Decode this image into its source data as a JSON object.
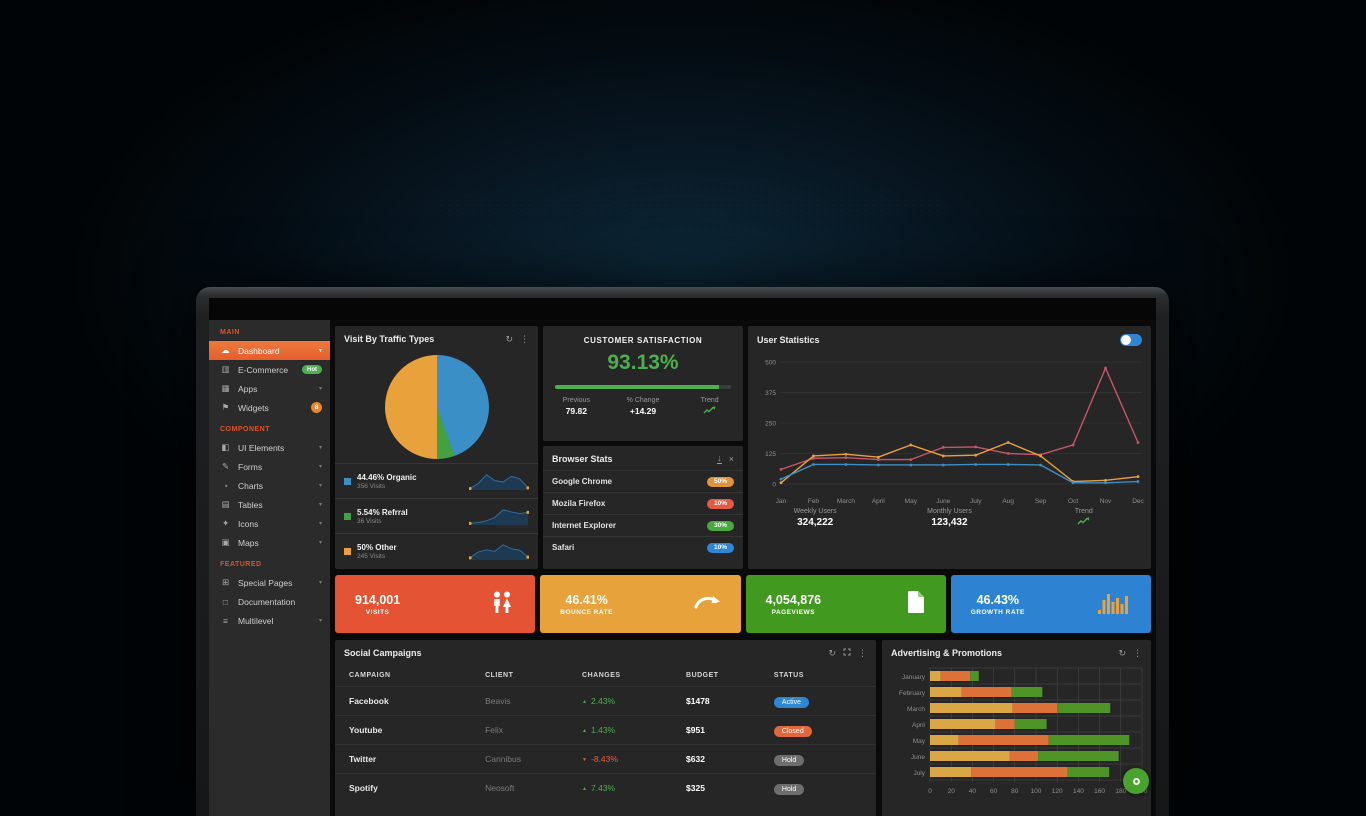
{
  "sidebar": {
    "sections": [
      {
        "label": "MAIN",
        "items": [
          {
            "label": "Dashboard",
            "icon": "dashboard-icon",
            "glyph": "☁",
            "active": true,
            "chevron": true
          },
          {
            "label": "E-Commerce",
            "icon": "ecommerce-icon",
            "glyph": "▥",
            "badge": {
              "text": "Hot",
              "type": "pill",
              "color": "#4caf50"
            }
          },
          {
            "label": "Apps",
            "icon": "apps-icon",
            "glyph": "▦",
            "chevron": true
          },
          {
            "label": "Widgets",
            "icon": "widgets-icon",
            "glyph": "⚑",
            "badge": {
              "text": "8",
              "type": "round",
              "color": "#e8872c"
            }
          }
        ]
      },
      {
        "label": "COMPONENT",
        "items": [
          {
            "label": "UI Elements",
            "icon": "ui-elements-icon",
            "glyph": "◧",
            "chevron": true
          },
          {
            "label": "Forms",
            "icon": "forms-icon",
            "glyph": "✎",
            "chevron": true
          },
          {
            "label": "Charts",
            "icon": "charts-icon",
            "glyph": "◔",
            "chevron": true
          },
          {
            "label": "Tables",
            "icon": "tables-icon",
            "glyph": "▤",
            "chevron": true
          },
          {
            "label": "Icons",
            "icon": "icons-icon",
            "glyph": "✦",
            "chevron": true
          },
          {
            "label": "Maps",
            "icon": "maps-icon",
            "glyph": "▣",
            "chevron": true
          }
        ]
      },
      {
        "label": "FEATURED",
        "items": [
          {
            "label": "Special Pages",
            "icon": "special-pages-icon",
            "glyph": "⊞",
            "chevron": true
          },
          {
            "label": "Documentation",
            "icon": "documentation-icon",
            "glyph": "□"
          },
          {
            "label": "Multilevel",
            "icon": "multilevel-icon",
            "glyph": "≡",
            "chevron": true
          }
        ]
      }
    ]
  },
  "traffic": {
    "title": "Visit By Traffic Types",
    "chart_data": {
      "type": "pie",
      "slices": [
        {
          "label": "Organic",
          "display": "44.46% Organic",
          "percent": 44.46,
          "visits": "356 Visits",
          "color": "#3a8fc7",
          "spark": [
            4,
            18,
            42,
            26,
            22,
            38,
            31,
            6
          ]
        },
        {
          "label": "Refrral",
          "display": "5.54% Refrral",
          "percent": 5.54,
          "visits": "36 Visits",
          "color": "#44a13f",
          "spark": [
            4,
            6,
            10,
            18,
            36,
            31,
            27,
            30
          ]
        },
        {
          "label": "Other",
          "display": "50% Other",
          "percent": 50.0,
          "visits": "245 Visits",
          "color": "#e9a13c",
          "spark": [
            6,
            22,
            28,
            24,
            42,
            31,
            27,
            8
          ]
        }
      ]
    }
  },
  "satisfaction": {
    "title": "CUSTOMER SATISFACTION",
    "value": "93.13%",
    "progress_percent": 93.13,
    "previous_label": "Previous",
    "previous": "79.82",
    "change_label": "% Change",
    "change": "+14.29",
    "trend_label": "Trend"
  },
  "browsers": {
    "title": "Browser Stats",
    "rows": [
      {
        "name": "Google Chrome",
        "value": "50%",
        "color": "#e2943b"
      },
      {
        "name": "Mozila Firefox",
        "value": "10%",
        "color": "#e25b44"
      },
      {
        "name": "Internet Explorer",
        "value": "30%",
        "color": "#49a83e"
      },
      {
        "name": "Safari",
        "value": "10%",
        "color": "#2f86d2"
      }
    ]
  },
  "user_stats": {
    "title": "User Statistics",
    "weekly_label": "Weekly Users",
    "weekly": "324,222",
    "monthly_label": "Monthly Users",
    "monthly": "123,432",
    "trend_label": "Trend",
    "chart_data": {
      "type": "line",
      "x": [
        "Jan",
        "Feb",
        "March",
        "April",
        "May",
        "June",
        "July",
        "Aug",
        "Sep",
        "Oct",
        "Nov",
        "Dec"
      ],
      "yticks": [
        0,
        125,
        250,
        375,
        500
      ],
      "ylim": [
        0,
        500
      ],
      "series": [
        {
          "name": "series-red",
          "color": "#c6566b",
          "values": [
            60,
            105,
            108,
            100,
            100,
            150,
            152,
            125,
            120,
            160,
            475,
            170
          ]
        },
        {
          "name": "series-orange",
          "color": "#e9a13c",
          "values": [
            5,
            115,
            122,
            110,
            160,
            115,
            118,
            170,
            115,
            10,
            15,
            30
          ]
        },
        {
          "name": "series-blue",
          "color": "#3a8fc7",
          "values": [
            20,
            80,
            80,
            78,
            78,
            78,
            80,
            80,
            78,
            5,
            5,
            10
          ]
        }
      ]
    }
  },
  "tiles": [
    {
      "value": "914,001",
      "label": "VISITS",
      "color": "#e45334",
      "icon": "people-icon"
    },
    {
      "value": "46.41%",
      "label": "BOUNCE RATE",
      "color": "#e8a23b",
      "icon": "bounce-arrow-icon"
    },
    {
      "value": "4,054,876",
      "label": "PAGEVIEWS",
      "color": "#41991f",
      "icon": "file-icon"
    },
    {
      "value": "46.43%",
      "label": "GROWTH RATE",
      "color": "#2d83d2",
      "icon": "bar-chart-icon"
    }
  ],
  "campaigns": {
    "title": "Social Campaigns",
    "columns": [
      "CAMPAIGN",
      "CLIENT",
      "CHANGES",
      "BUDGET",
      "STATUS"
    ],
    "rows": [
      {
        "campaign": "Facebook",
        "client": "Beavis",
        "change": "2.43%",
        "direction": "up",
        "budget": "$1478",
        "status": "Active",
        "status_color": "#2f86d2"
      },
      {
        "campaign": "Youtube",
        "client": "Felix",
        "change": "1.43%",
        "direction": "up",
        "budget": "$951",
        "status": "Closed",
        "status_color": "#e0683c"
      },
      {
        "campaign": "Twitter",
        "client": "Cannibus",
        "change": "-8.43%",
        "direction": "down",
        "budget": "$632",
        "status": "Hold",
        "status_color": "#6e6e6e"
      },
      {
        "campaign": "Spotify",
        "client": "Neosoft",
        "change": "7.43%",
        "direction": "up",
        "budget": "$325",
        "status": "Hold",
        "status_color": "#6e6e6e"
      }
    ]
  },
  "advertising": {
    "title": "Advertising & Promotions",
    "chart_data": {
      "type": "bar",
      "orientation": "horizontal",
      "stacked": true,
      "categories": [
        "January",
        "February",
        "March",
        "April",
        "May",
        "June",
        "July"
      ],
      "xticks": [
        0,
        20,
        40,
        60,
        80,
        100,
        120,
        140,
        160,
        180,
        200
      ],
      "xlim": [
        0,
        200
      ],
      "series": [
        {
          "name": "segment-yellow",
          "color": "#d9a844",
          "values": [
            10,
            30,
            78,
            62,
            27,
            75,
            39
          ]
        },
        {
          "name": "segment-orange",
          "color": "#dd7137",
          "values": [
            28,
            47,
            42,
            18,
            85,
            27,
            91
          ]
        },
        {
          "name": "segment-green",
          "color": "#4e9427",
          "values": [
            8,
            29,
            50,
            30,
            76,
            76,
            39
          ]
        }
      ]
    }
  },
  "colors": {
    "accent_orange": "#e8622d",
    "green": "#4caf50",
    "change_up": "#4caf50",
    "change_down": "#e0603f"
  }
}
